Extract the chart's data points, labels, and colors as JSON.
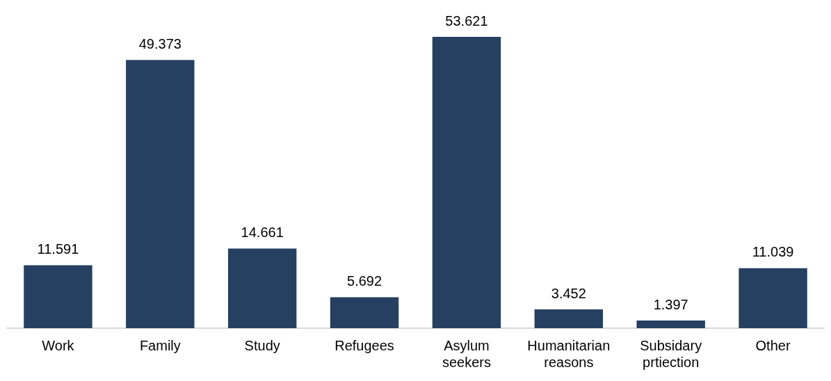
{
  "chart_data": {
    "type": "bar",
    "categories": [
      "Work",
      "Family",
      "Study",
      "Refugees",
      "Asylum seekers",
      "Humanitarian reasons",
      "Subsidary prtiection",
      "Other"
    ],
    "values": [
      11.591,
      49.373,
      14.661,
      5.692,
      53.621,
      3.452,
      1.397,
      11.039
    ],
    "color": "#264061",
    "data_labels": true,
    "grid": false,
    "legend": false
  }
}
